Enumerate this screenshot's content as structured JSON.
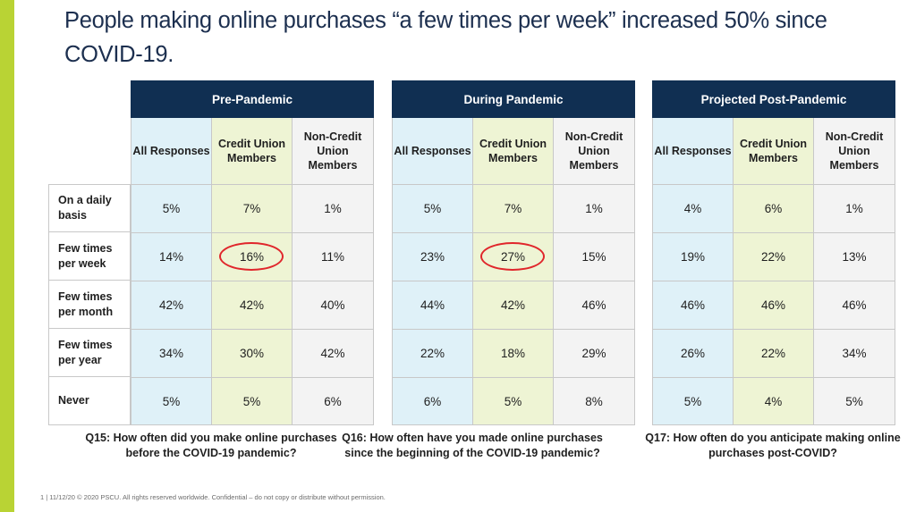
{
  "title": "People making online purchases “a few times per week” increased 50% since COVID-19.",
  "row_labels": [
    "On a daily basis",
    "Few times per week",
    "Few times per month",
    "Few times per year",
    "Never"
  ],
  "panels": [
    {
      "header": "Pre-Pandemic",
      "columns": [
        "All Responses",
        "Credit Union Members",
        "Non-Credit Union Members"
      ],
      "rows": [
        [
          "5%",
          "7%",
          "1%"
        ],
        [
          "14%",
          "16%",
          "11%"
        ],
        [
          "42%",
          "42%",
          "40%"
        ],
        [
          "34%",
          "30%",
          "42%"
        ],
        [
          "5%",
          "5%",
          "6%"
        ]
      ],
      "caption": "Q15: How often did you make online purchases before the COVID-19 pandemic?"
    },
    {
      "header": "During Pandemic",
      "columns": [
        "All Responses",
        "Credit Union Members",
        "Non-Credit Union Members"
      ],
      "rows": [
        [
          "5%",
          "7%",
          "1%"
        ],
        [
          "23%",
          "27%",
          "15%"
        ],
        [
          "44%",
          "42%",
          "46%"
        ],
        [
          "22%",
          "18%",
          "29%"
        ],
        [
          "6%",
          "5%",
          "8%"
        ]
      ],
      "caption": "Q16: How often have you made online purchases since the beginning of the COVID-19 pandemic?"
    },
    {
      "header": "Projected Post-Pandemic",
      "columns": [
        "All Responses",
        "Credit Union Members",
        "Non-Credit Union Members"
      ],
      "rows": [
        [
          "4%",
          "6%",
          "1%"
        ],
        [
          "19%",
          "22%",
          "13%"
        ],
        [
          "46%",
          "46%",
          "46%"
        ],
        [
          "26%",
          "22%",
          "34%"
        ],
        [
          "5%",
          "4%",
          "5%"
        ]
      ],
      "caption": "Q17: How often do you anticipate making online purchases post-COVID?"
    }
  ],
  "highlighted_cells": [
    {
      "panel": "Pre-Pandemic",
      "row": "Few times per week",
      "column": "Credit Union Members",
      "color": "#e0262b"
    },
    {
      "panel": "During Pandemic",
      "row": "Few times per week",
      "column": "Credit Union Members",
      "color": "#e0262b"
    }
  ],
  "footer": "1  |  11/12/20 © 2020 PSCU. All rights reserved worldwide. Confidential – do not copy or distribute without permission.",
  "colors": {
    "header": "#102f52",
    "title": "#1c2f4f",
    "accent": "#b9d334",
    "all_responses": "#dff1f8",
    "cu_members": "#eef4d4",
    "non_cu": "#f3f3f3"
  }
}
